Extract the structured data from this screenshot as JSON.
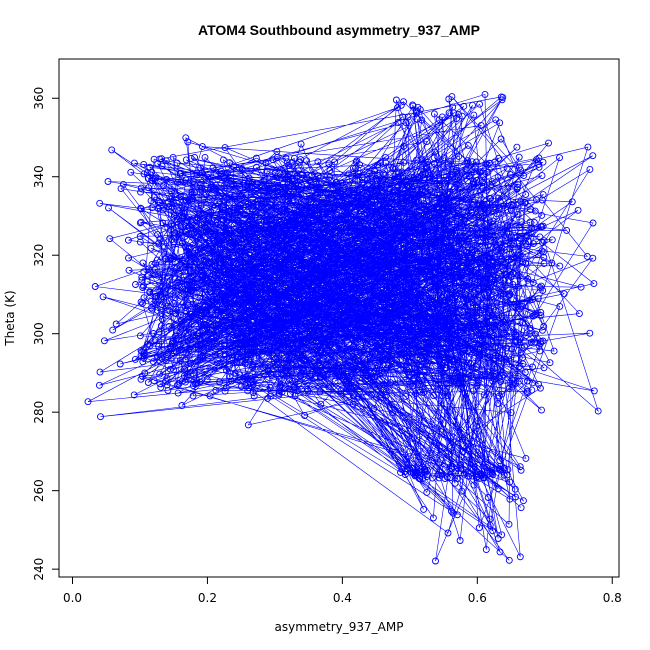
{
  "chart_data": {
    "type": "scatter",
    "title": "ATOM4 Southbound asymmetry_937_AMP",
    "xlabel": "asymmetry_937_AMP",
    "ylabel": "Theta (K)",
    "xlim": [
      -0.02,
      0.81
    ],
    "ylim": [
      238,
      370
    ],
    "x_ticks": [
      0.0,
      0.2,
      0.4,
      0.6,
      0.8
    ],
    "x_tick_labels": [
      "0.0",
      "0.2",
      "0.4",
      "0.6",
      "0.8"
    ],
    "y_ticks": [
      240,
      260,
      280,
      300,
      320,
      340,
      360
    ],
    "y_tick_labels": [
      "240",
      "260",
      "280",
      "300",
      "320",
      "340",
      "360"
    ],
    "grid": false,
    "marker": "open-circle",
    "connected": true,
    "series_color": "#0000ff",
    "regions": [
      {
        "x_range": [
          0.1,
          0.7
        ],
        "theta_range": [
          284,
          345
        ],
        "share": 0.8
      },
      {
        "x_range": [
          0.02,
          0.78
        ],
        "theta_range": [
          276,
          350
        ],
        "share": 0.12
      },
      {
        "x_range": [
          0.48,
          0.64
        ],
        "theta_range": [
          353,
          361
        ],
        "share": 0.02
      },
      {
        "x_range": [
          0.52,
          0.68
        ],
        "theta_range": [
          242,
          270
        ],
        "share": 0.03
      },
      {
        "x_range": [
          0.48,
          0.65
        ],
        "theta_range": [
          263,
          266
        ],
        "share": 0.03
      }
    ]
  }
}
